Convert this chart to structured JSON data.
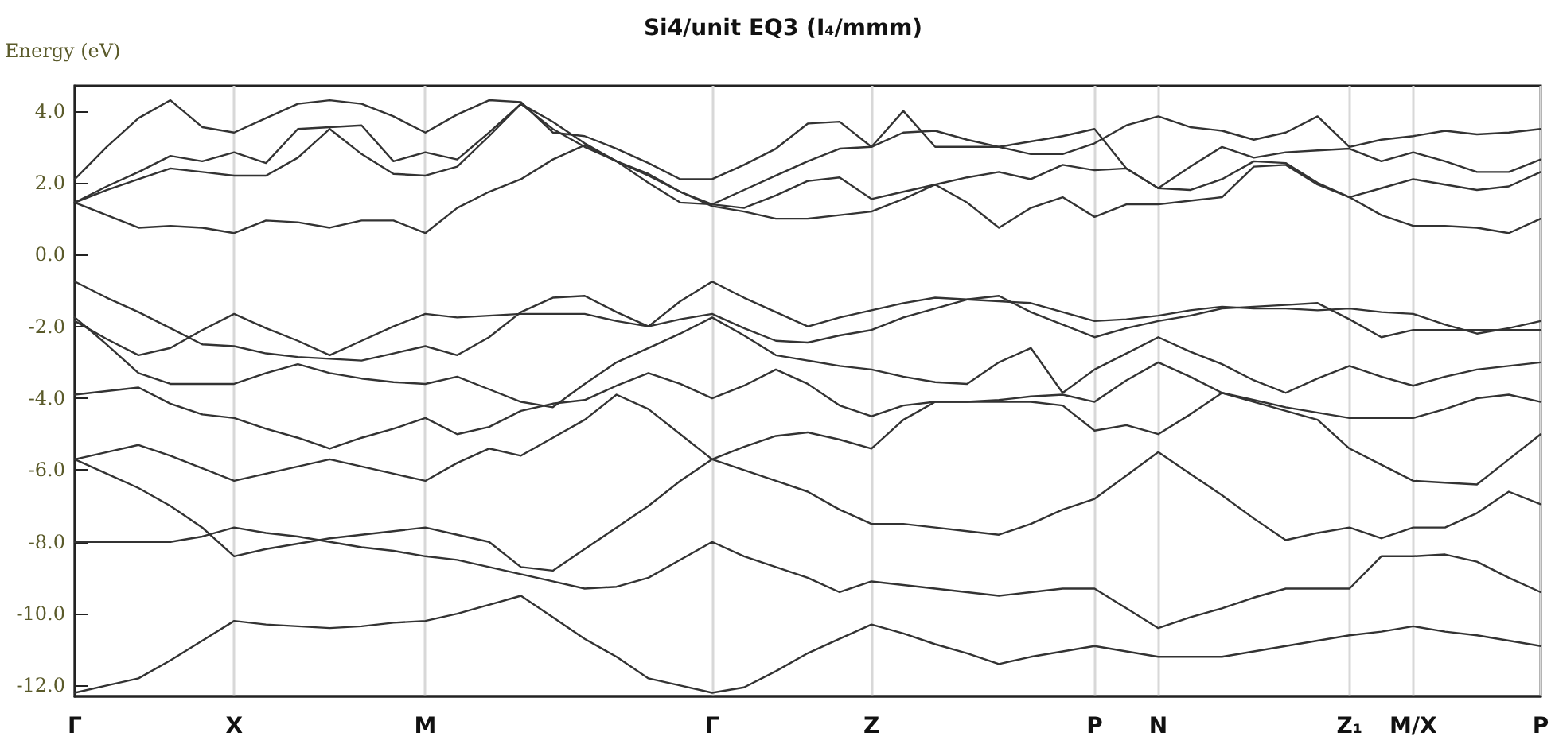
{
  "chart_data": {
    "type": "line",
    "title": "Si4/unit EQ3 (I₄/mmm)",
    "ylabel": "Energy (eV)",
    "categories": [
      "Γ",
      null,
      null,
      null,
      null,
      "X",
      null,
      null,
      null,
      null,
      null,
      "M",
      null,
      null,
      null,
      null,
      null,
      null,
      null,
      null,
      "Γ",
      null,
      null,
      null,
      null,
      "Z",
      null,
      null,
      null,
      null,
      null,
      null,
      "P",
      null,
      "N",
      null,
      null,
      null,
      null,
      null,
      "Z₁",
      null,
      "M/X",
      null,
      null,
      null,
      "P"
    ],
    "ylim": [
      -12.3,
      4.7
    ],
    "yticks": [
      {
        "value": 4,
        "label": "4.0"
      },
      {
        "value": 2,
        "label": "2.0"
      },
      {
        "value": 0,
        "label": "0.0"
      },
      {
        "value": -2,
        "label": "-2.0"
      },
      {
        "value": -4,
        "label": "-4.0"
      },
      {
        "value": -6,
        "label": "-6.0"
      },
      {
        "value": -8,
        "label": "-8.0"
      },
      {
        "value": -10,
        "label": "-10.0"
      },
      {
        "value": -12,
        "label": "-12.0"
      }
    ],
    "grid": "x",
    "series": [
      {
        "color": "#333333",
        "values": [
          2.1,
          3.0,
          3.8,
          4.3,
          3.55,
          3.4,
          3.8,
          4.2,
          4.3,
          4.2,
          3.85,
          3.4,
          3.9,
          4.3,
          4.25,
          3.4,
          3.3,
          2.95,
          2.55,
          2.1,
          2.1,
          2.5,
          2.95,
          3.65,
          3.7,
          3.0,
          4.0,
          3.0,
          3.0,
          3.0,
          2.8,
          2.8,
          3.1,
          3.6,
          3.85,
          3.55,
          3.45,
          3.2,
          3.4,
          3.85,
          3.0,
          3.2,
          3.3,
          3.45,
          3.35,
          3.4,
          3.5
        ]
      },
      {
        "color": "#333333",
        "values": [
          1.45,
          1.9,
          2.3,
          2.75,
          2.6,
          2.85,
          2.55,
          3.5,
          3.55,
          3.6,
          2.6,
          2.85,
          2.65,
          3.4,
          4.2,
          3.7,
          3.1,
          2.6,
          2.0,
          1.45,
          1.4,
          1.8,
          2.2,
          2.6,
          2.95,
          3.0,
          3.4,
          3.45,
          3.2,
          3.0,
          3.15,
          3.3,
          3.5,
          2.4,
          1.85,
          2.45,
          3.0,
          2.7,
          2.85,
          2.9,
          2.95,
          2.6,
          2.85,
          2.6,
          2.3,
          2.3,
          2.65
        ]
      },
      {
        "color": "#333333",
        "values": [
          1.45,
          1.8,
          2.1,
          2.4,
          2.3,
          2.2,
          2.2,
          2.7,
          3.5,
          2.8,
          2.25,
          2.2,
          2.45,
          3.3,
          4.2,
          3.5,
          3.0,
          2.6,
          2.25,
          1.75,
          1.4,
          1.3,
          1.65,
          2.05,
          2.15,
          1.55,
          1.75,
          1.95,
          2.15,
          2.3,
          2.1,
          2.5,
          2.35,
          2.4,
          1.85,
          1.8,
          2.1,
          2.6,
          2.55,
          2.0,
          1.6,
          1.85,
          2.1,
          1.95,
          1.8,
          1.9,
          2.3
        ]
      },
      {
        "color": "#333333",
        "values": [
          1.45,
          1.1,
          0.75,
          0.8,
          0.75,
          0.6,
          0.95,
          0.9,
          0.75,
          0.95,
          0.95,
          0.6,
          1.3,
          1.75,
          2.1,
          2.65,
          3.05,
          2.6,
          2.2,
          1.75,
          1.35,
          1.2,
          1.0,
          1.0,
          1.1,
          1.2,
          1.55,
          1.95,
          1.45,
          0.75,
          1.3,
          1.6,
          1.05,
          1.4,
          1.4,
          1.5,
          1.6,
          2.45,
          2.5,
          1.95,
          1.6,
          1.1,
          0.8,
          0.8,
          0.75,
          0.6,
          1.0
        ]
      },
      {
        "color": "#333333",
        "values": [
          -0.75,
          -1.2,
          -1.6,
          -2.05,
          -2.5,
          -2.55,
          -2.75,
          -2.85,
          -2.9,
          -2.95,
          -2.75,
          -2.55,
          -2.8,
          -2.3,
          -1.6,
          -1.2,
          -1.15,
          -1.6,
          -2.0,
          -1.3,
          -0.75,
          -1.2,
          -1.6,
          -2.0,
          -1.75,
          -1.55,
          -1.35,
          -1.2,
          -1.25,
          -1.3,
          -1.35,
          -1.6,
          -1.85,
          -1.8,
          -1.7,
          -1.55,
          -1.45,
          -1.5,
          -1.5,
          -1.55,
          -1.5,
          -1.6,
          -1.65,
          -1.95,
          -2.2,
          -2.05,
          -1.85
        ]
      },
      {
        "color": "#333333",
        "values": [
          -1.85,
          -2.35,
          -2.8,
          -2.6,
          -2.1,
          -1.65,
          -2.05,
          -2.4,
          -2.8,
          -2.4,
          -2.0,
          -1.65,
          -1.75,
          -1.7,
          -1.65,
          -1.65,
          -1.65,
          -1.85,
          -2.0,
          -1.8,
          -1.65,
          -2.05,
          -2.4,
          -2.45,
          -2.25,
          -2.1,
          -1.75,
          -1.5,
          -1.25,
          -1.15,
          -1.6,
          -1.95,
          -2.3,
          -2.05,
          -1.85,
          -1.7,
          -1.5,
          -1.45,
          -1.4,
          -1.35,
          -1.8,
          -2.3,
          -2.1,
          -2.1,
          -2.1,
          -2.1,
          -2.1
        ]
      },
      {
        "color": "#333333",
        "values": [
          -1.75,
          -2.5,
          -3.3,
          -3.6,
          -3.6,
          -3.6,
          -3.3,
          -3.05,
          -3.3,
          -3.45,
          -3.55,
          -3.6,
          -3.4,
          -3.75,
          -4.1,
          -4.25,
          -3.6,
          -3.0,
          -2.6,
          -2.2,
          -1.75,
          -2.25,
          -2.8,
          -2.95,
          -3.1,
          -3.2,
          -3.4,
          -3.55,
          -3.6,
          -3.0,
          -2.6,
          -3.85,
          -3.2,
          -2.75,
          -2.3,
          -2.7,
          -3.05,
          -3.5,
          -3.85,
          -3.45,
          -3.1,
          -3.4,
          -3.65,
          -3.4,
          -3.2,
          -3.1,
          -3.0
        ]
      },
      {
        "color": "#333333",
        "values": [
          -3.9,
          -3.8,
          -3.7,
          -4.15,
          -4.45,
          -4.55,
          -4.85,
          -5.1,
          -5.4,
          -5.1,
          -4.85,
          -4.55,
          -5.0,
          -4.8,
          -4.35,
          -4.15,
          -4.05,
          -3.65,
          -3.3,
          -3.6,
          -4.0,
          -3.65,
          -3.2,
          -3.6,
          -4.2,
          -4.5,
          -4.2,
          -4.1,
          -4.1,
          -4.05,
          -3.95,
          -3.9,
          -4.1,
          -3.5,
          -3.0,
          -3.4,
          -3.85,
          -4.05,
          -4.25,
          -4.4,
          -4.55,
          -4.55,
          -4.55,
          -4.3,
          -4.0,
          -3.9,
          -4.1
        ]
      },
      {
        "color": "#333333",
        "values": [
          -5.7,
          -5.5,
          -5.3,
          -5.6,
          -5.95,
          -6.3,
          -6.1,
          -5.9,
          -5.7,
          -5.9,
          -6.1,
          -6.3,
          -5.8,
          -5.4,
          -5.6,
          -5.1,
          -4.6,
          -3.9,
          -4.3,
          -5.0,
          -5.7,
          -5.35,
          -5.05,
          -4.95,
          -5.15,
          -5.4,
          -4.6,
          -4.1,
          -4.1,
          -4.1,
          -4.1,
          -4.2,
          -4.9,
          -4.75,
          -5.0,
          -4.45,
          -3.85,
          -4.1,
          -4.35,
          -4.6,
          -5.4,
          -5.85,
          -6.3,
          -6.35,
          -6.4,
          -5.7,
          -5.0
        ]
      },
      {
        "color": "#333333",
        "values": [
          -5.7,
          -6.1,
          -6.5,
          -7.0,
          -7.6,
          -8.4,
          -8.2,
          -8.05,
          -7.9,
          -7.8,
          -7.7,
          -7.6,
          -7.8,
          -8.0,
          -8.7,
          -8.8,
          -8.2,
          -7.6,
          -7.0,
          -6.3,
          -5.7,
          -6.0,
          -6.3,
          -6.6,
          -7.1,
          -7.5,
          -7.5,
          -7.6,
          -7.7,
          -7.8,
          -7.5,
          -7.1,
          -6.8,
          -6.15,
          -5.5,
          -6.1,
          -6.7,
          -7.35,
          -7.95,
          -7.75,
          -7.6,
          -7.9,
          -7.6,
          -7.6,
          -7.2,
          -6.6,
          -6.95
        ]
      },
      {
        "color": "#333333",
        "values": [
          -8.0,
          -8.0,
          -8.0,
          -8.0,
          -7.85,
          -7.6,
          -7.75,
          -7.85,
          -8.0,
          -8.15,
          -8.25,
          -8.4,
          -8.5,
          -8.7,
          -8.9,
          -9.1,
          -9.3,
          -9.25,
          -9.0,
          -8.5,
          -8.0,
          -8.4,
          -8.7,
          -9.0,
          -9.4,
          -9.1,
          -9.2,
          -9.3,
          -9.4,
          -9.5,
          -9.4,
          -9.3,
          -9.3,
          -9.85,
          -10.4,
          -10.1,
          -9.85,
          -9.55,
          -9.3,
          -9.3,
          -9.3,
          -8.4,
          -8.4,
          -8.35,
          -8.55,
          -9.0,
          -9.4
        ]
      },
      {
        "color": "#333333",
        "values": [
          -12.2,
          -12.0,
          -11.8,
          -11.3,
          -10.75,
          -10.2,
          -10.3,
          -10.35,
          -10.4,
          -10.35,
          -10.25,
          -10.2,
          -10.0,
          -9.75,
          -9.5,
          -10.1,
          -10.7,
          -11.2,
          -11.8,
          -12.0,
          -12.2,
          -12.05,
          -11.6,
          -11.1,
          -10.7,
          -10.3,
          -10.55,
          -10.85,
          -11.1,
          -11.4,
          -11.2,
          -11.05,
          -10.9,
          -11.05,
          -11.2,
          -11.2,
          -11.2,
          -11.05,
          -10.9,
          -10.75,
          -10.6,
          -10.5,
          -10.35,
          -10.5,
          -10.6,
          -10.75,
          -10.9
        ]
      }
    ]
  }
}
